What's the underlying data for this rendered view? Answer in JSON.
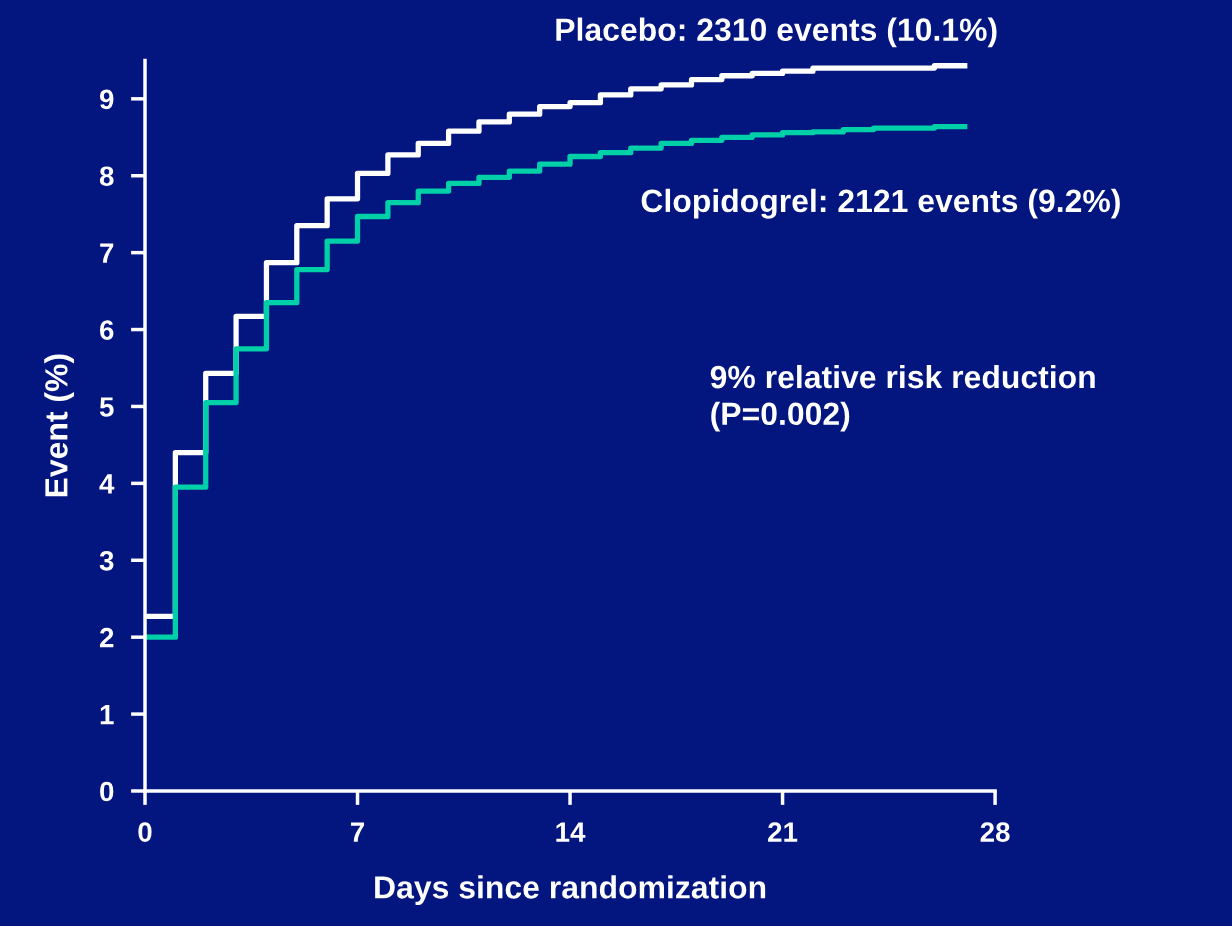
{
  "chart_data": {
    "type": "step",
    "xlabel": "Days since randomization",
    "ylabel": "Event (%)",
    "x": [
      0,
      1,
      2,
      3,
      4,
      5,
      6,
      7,
      8,
      9,
      10,
      11,
      12,
      13,
      14,
      15,
      16,
      17,
      18,
      19,
      20,
      21,
      22,
      23,
      24,
      25,
      26,
      27
    ],
    "series": [
      {
        "name": "Placebo: 2310 events (10.1%)",
        "color": "#ffffff",
        "values": [
          2.27,
          4.4,
          5.43,
          6.17,
          6.87,
          7.35,
          7.7,
          8.03,
          8.27,
          8.42,
          8.58,
          8.7,
          8.8,
          8.9,
          8.95,
          9.05,
          9.13,
          9.18,
          9.25,
          9.3,
          9.33,
          9.36,
          9.4,
          9.4,
          9.4,
          9.4,
          9.43,
          9.43
        ]
      },
      {
        "name": "Clopidogrel: 2121 events (9.2%)",
        "color": "#00d0a8",
        "values": [
          2.0,
          3.95,
          5.05,
          5.75,
          6.35,
          6.78,
          7.15,
          7.47,
          7.65,
          7.8,
          7.9,
          7.98,
          8.06,
          8.15,
          8.25,
          8.3,
          8.36,
          8.42,
          8.46,
          8.5,
          8.53,
          8.56,
          8.57,
          8.6,
          8.62,
          8.62,
          8.64,
          8.64
        ]
      }
    ],
    "xlim": [
      0,
      28
    ],
    "xticks": [
      0,
      7,
      14,
      21,
      28
    ],
    "ylim": [
      0,
      9.5
    ],
    "yticks": [
      0,
      1,
      2,
      3,
      4,
      5,
      6,
      7,
      8,
      9
    ],
    "grid": false,
    "legend": false,
    "line_style": "solid",
    "marker": "none",
    "annotations": [
      "9% relative risk reduction\n(P=0.002)"
    ]
  }
}
